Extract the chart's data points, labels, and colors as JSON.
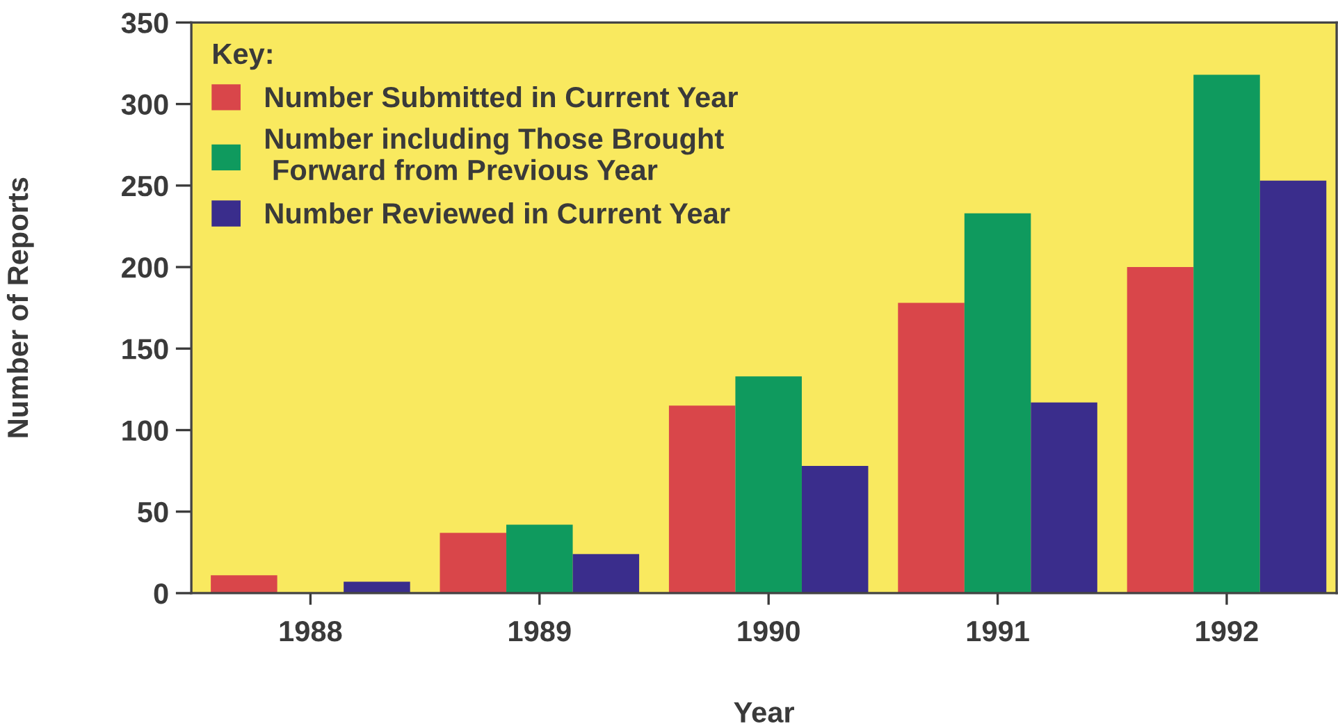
{
  "chart_data": {
    "type": "bar",
    "xlabel": "Year",
    "ylabel": "Number of Reports",
    "legend_title": "Key:",
    "categories": [
      "1988",
      "1989",
      "1990",
      "1991",
      "1992"
    ],
    "series": [
      {
        "name": "Number Submitted in Current Year",
        "color": "#d9464a",
        "values": [
          11,
          37,
          115,
          178,
          200
        ]
      },
      {
        "name": "Number including Those Brought\n Forward from Previous Year",
        "color": "#0f9a5e",
        "values": [
          null,
          42,
          133,
          233,
          318
        ]
      },
      {
        "name": "Number Reviewed in Current Year",
        "color": "#3a2d8c",
        "values": [
          7,
          24,
          78,
          117,
          253
        ]
      }
    ],
    "ylim": [
      0,
      350
    ],
    "yticks": [
      0,
      50,
      100,
      150,
      200,
      250,
      300,
      350
    ],
    "grid": false,
    "legend": "top left"
  }
}
